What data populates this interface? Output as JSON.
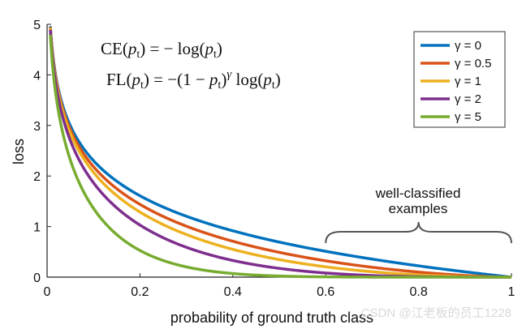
{
  "chart_data": {
    "type": "line",
    "function_note": "",
    "xlabel": "probability of ground truth class",
    "ylabel": "loss",
    "xlim": [
      0,
      1
    ],
    "ylim": [
      0,
      5
    ],
    "x_ticks": [
      0,
      0.2,
      0.4,
      0.6,
      0.8,
      1
    ],
    "x_tick_labels": [
      "0",
      "0.2",
      "0.4",
      "0.6",
      "0.8",
      "1"
    ],
    "y_ticks": [
      0,
      1,
      2,
      3,
      4,
      5
    ],
    "y_tick_labels": [
      "0",
      "1",
      "2",
      "3",
      "4",
      "5"
    ],
    "x": [
      0.007,
      0.01,
      0.02,
      0.05,
      0.1,
      0.2,
      0.3,
      0.4,
      0.5,
      0.6,
      0.7,
      0.8,
      0.9,
      1.0
    ],
    "series": [
      {
        "name": "γ = 0",
        "gamma": 0,
        "color": "#0072BD",
        "values": [
          4.96,
          4.61,
          3.91,
          3.0,
          2.3,
          1.61,
          1.2,
          0.92,
          0.69,
          0.51,
          0.36,
          0.22,
          0.11,
          0
        ]
      },
      {
        "name": "γ = 0.5",
        "gamma": 0.5,
        "color": "#D95319",
        "values": [
          4.94,
          4.58,
          3.87,
          2.92,
          2.18,
          1.44,
          1.01,
          0.71,
          0.49,
          0.32,
          0.2,
          0.1,
          0.03,
          0
        ]
      },
      {
        "name": "γ = 1",
        "gamma": 1,
        "color": "#EDB120",
        "values": [
          4.93,
          4.56,
          3.83,
          2.85,
          2.07,
          1.29,
          0.84,
          0.55,
          0.35,
          0.2,
          0.11,
          0.04,
          0.01,
          0
        ]
      },
      {
        "name": "γ = 2",
        "gamma": 2,
        "color": "#7E2F8E",
        "values": [
          4.89,
          4.51,
          3.76,
          2.71,
          1.87,
          1.03,
          0.59,
          0.33,
          0.17,
          0.08,
          0.03,
          0.01,
          0.0,
          0
        ]
      },
      {
        "name": "γ = 5",
        "gamma": 5,
        "color": "#77AC30",
        "values": [
          4.79,
          4.39,
          3.54,
          2.32,
          1.36,
          0.53,
          0.2,
          0.07,
          0.02,
          0.01,
          0.0,
          0.0,
          0.0,
          0
        ]
      }
    ],
    "legend_position": "top-right",
    "grid": false,
    "formulas": {
      "ce_left": "CE(",
      "ce_p": "p",
      "ce_sub": "t",
      "ce_right": ") = − log(",
      "ce_p2": "p",
      "ce_sub2": "t",
      "ce_end": ")",
      "fl_left": "FL(",
      "fl_p": "p",
      "fl_sub": "t",
      "fl_mid": ") = −(1 − ",
      "fl_p2": "p",
      "fl_sub2": "t",
      "fl_close": ")",
      "fl_gamma": "γ",
      "fl_log": " log(",
      "fl_p3": "p",
      "fl_sub3": "t",
      "fl_end": ")"
    },
    "annotation": {
      "line1": "well-classified",
      "line2": "examples",
      "x_from": 0.6,
      "x_to": 1.0,
      "y": 0.75
    }
  },
  "watermark": "CSDN @江老板的员工1228"
}
